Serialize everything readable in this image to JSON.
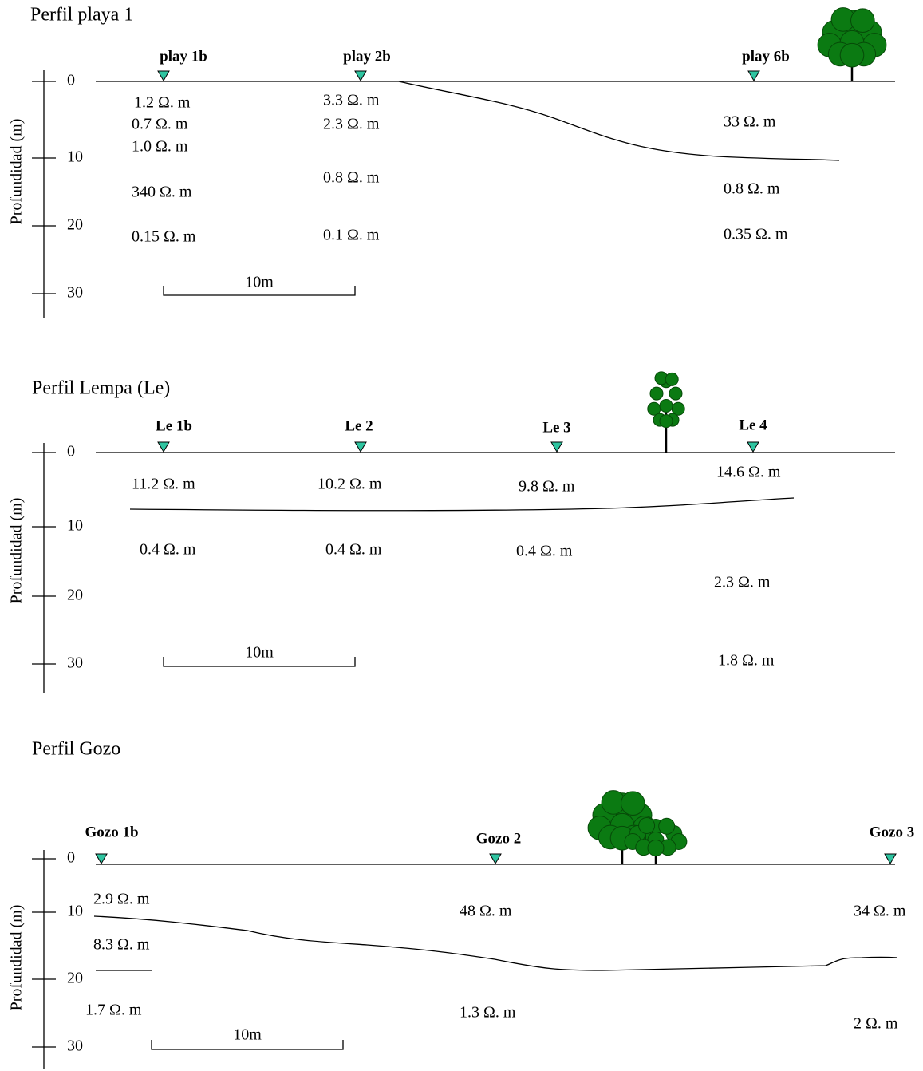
{
  "profiles": [
    {
      "title": "Perfil playa 1",
      "axis_label": "Profundidad (m)",
      "depth_ticks": [
        0,
        10,
        20,
        30
      ],
      "stations": [
        "play 1b",
        "play 2b",
        "play 6b"
      ],
      "resistivities": [
        "1.2 Ω. m",
        "0.7 Ω. m",
        "1.0 Ω. m",
        "340 Ω. m",
        "0.15 Ω. m",
        "3.3 Ω. m",
        "2.3 Ω. m",
        "0.8 Ω. m",
        "0.1 Ω. m",
        "33 Ω. m",
        "0.8 Ω. m",
        "0.35 Ω. m"
      ],
      "scale_label": "10m"
    },
    {
      "title": "Perfil Lempa (Le)",
      "axis_label": "Profundidad (m)",
      "depth_ticks": [
        0,
        10,
        20,
        30
      ],
      "stations": [
        "Le 1b",
        "Le 2",
        "Le 3",
        "Le 4"
      ],
      "resistivities": [
        "11.2 Ω. m",
        "10.2 Ω. m",
        "9.8 Ω. m",
        "14.6 Ω. m",
        "0.4 Ω. m",
        "0.4 Ω. m",
        "0.4 Ω. m",
        "2.3 Ω. m",
        "1.8 Ω. m"
      ],
      "scale_label": "10m"
    },
    {
      "title": "Perfil Gozo",
      "axis_label": "Profundidad (m)",
      "depth_ticks": [
        0,
        10,
        20,
        30
      ],
      "stations": [
        "Gozo 1b",
        "Gozo 2",
        "Gozo 3"
      ],
      "resistivities": [
        "2.9 Ω. m",
        "8.3 Ω. m",
        "1.7 Ω. m",
        "48 Ω. m",
        "1.3 Ω. m",
        "34 Ω. m",
        "2 Ω. m"
      ],
      "scale_label": "10m"
    }
  ]
}
